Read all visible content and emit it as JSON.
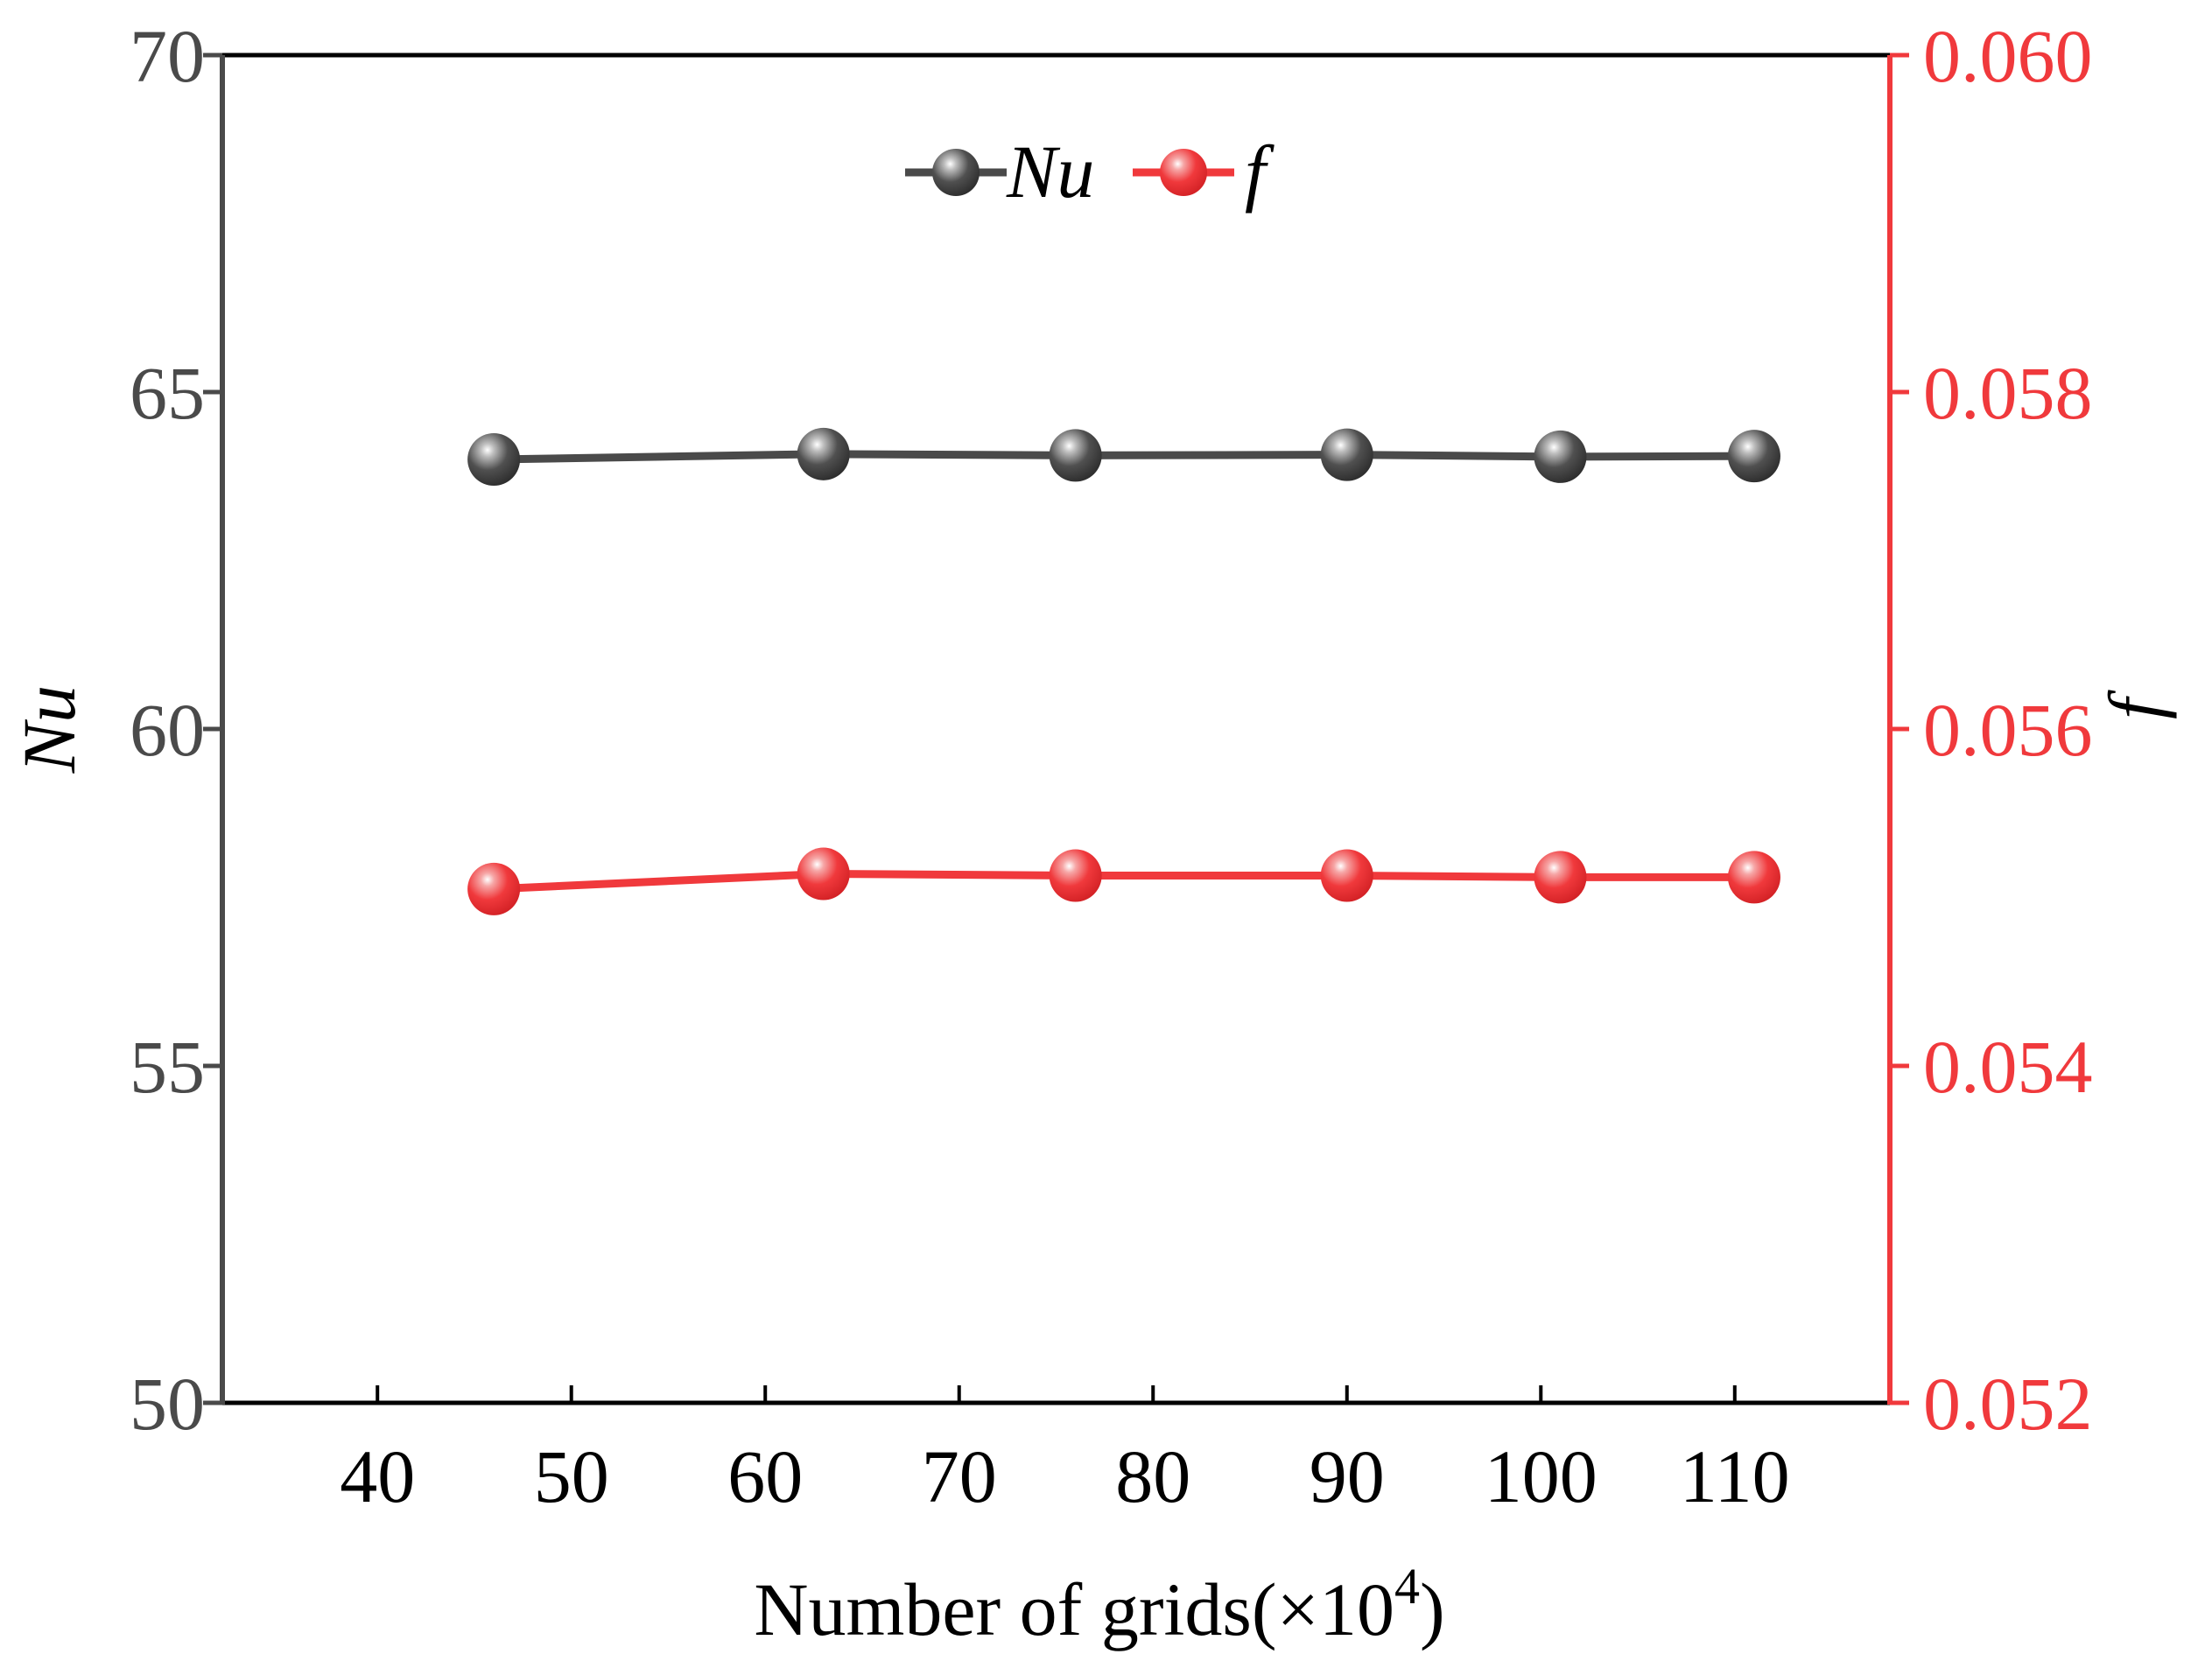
{
  "chart_data": {
    "type": "line",
    "title": "",
    "xlabel": "Number of grids(×10",
    "xlabel_sup": "4",
    "xlabel_close": ")",
    "ylabel_left": "Nu",
    "ylabel_right": "f",
    "xlim": [
      32,
      118
    ],
    "ylim_left": [
      50,
      70
    ],
    "ylim_right": [
      0.052,
      0.06
    ],
    "x_ticks": [
      40,
      50,
      60,
      70,
      80,
      90,
      100,
      110
    ],
    "y_left_ticks": [
      50,
      55,
      60,
      65,
      70
    ],
    "y_right_ticks": [
      "0.052",
      "0.054",
      "0.056",
      "0.058",
      "0.060"
    ],
    "x": [
      46,
      63,
      76,
      90,
      101,
      111
    ],
    "series": [
      {
        "name": "Nu",
        "axis": "left",
        "color": "#4a4a4a",
        "values": [
          64.0,
          64.08,
          64.06,
          64.07,
          64.04,
          64.05
        ]
      },
      {
        "name": "f",
        "axis": "right",
        "color": "#f0393c",
        "values": [
          0.05505,
          0.05514,
          0.05513,
          0.05513,
          0.05512,
          0.05512
        ]
      }
    ],
    "legend": {
      "position": "top-center",
      "entries": [
        "Nu",
        "f"
      ]
    },
    "grid": false
  },
  "colors": {
    "left_axis": "#4a4a4a",
    "right_axis": "#f0393c",
    "frame": "#000000"
  }
}
